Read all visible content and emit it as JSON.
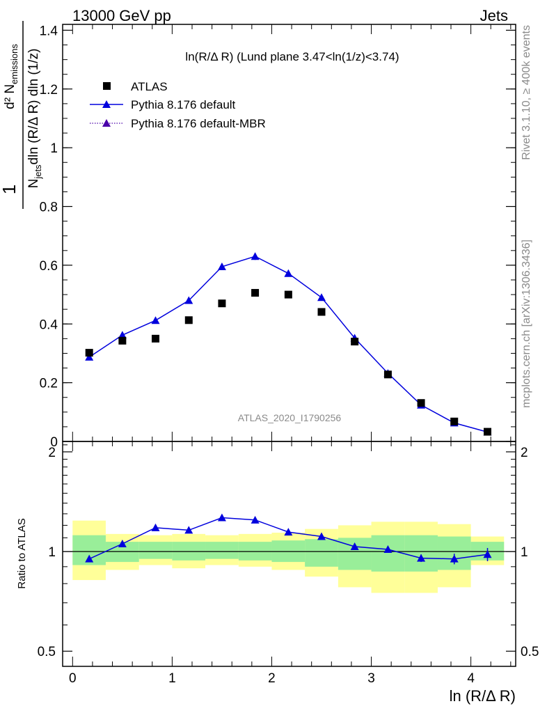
{
  "header": {
    "left": "13000 GeV pp",
    "right": "Jets"
  },
  "side_labels": {
    "rivet": "Rivet 3.1.10, ≥ 400k events",
    "mcplots": "mcplots.cern.ch [arXiv:1306.3436]"
  },
  "watermark": "ATLAS_2020_I1790256",
  "colors": {
    "data": "#000000",
    "mc": "#0000dd",
    "band_inner": "#99ee99",
    "band_outer": "#ffff99"
  },
  "chart_data": [
    {
      "type": "scatter",
      "title": "ln(R/Δ R) (Lund plane 3.47<ln(1/z)<3.74)",
      "ylabel": "1/N_jets d²N_emissions / dln(R/Δ R) dln(1/z)",
      "xlim": [
        -0.1,
        4.45
      ],
      "ylim": [
        0,
        1.42
      ],
      "yticks": [
        0,
        0.2,
        0.4,
        0.6,
        0.8,
        1.0,
        1.2,
        1.4
      ],
      "ytick_labels": [
        "0",
        "0.2",
        "0.4",
        "0.6",
        "0.8",
        "1",
        "1.2",
        "1.4"
      ],
      "legend": {
        "placement": "top-left",
        "entries": [
          "ATLAS",
          "Pythia 8.176 default",
          "Pythia 8.176 default-MBR"
        ]
      },
      "x": [
        0.167,
        0.5,
        0.833,
        1.167,
        1.5,
        1.833,
        2.167,
        2.5,
        2.833,
        3.167,
        3.5,
        3.833,
        4.167
      ],
      "series": [
        {
          "name": "ATLAS",
          "marker": "square",
          "values": [
            0.302,
            0.343,
            0.35,
            0.413,
            0.47,
            0.506,
            0.5,
            0.441,
            0.34,
            0.228,
            0.131,
            0.068,
            0.033
          ]
        },
        {
          "name": "Pythia 8.176 default",
          "marker": "triangle",
          "line": "solid",
          "values": [
            0.287,
            0.362,
            0.412,
            0.48,
            0.595,
            0.63,
            0.572,
            0.49,
            0.352,
            0.232,
            0.124,
            0.063,
            0.032
          ],
          "errors": [
            0.004,
            0.004,
            0.005,
            0.005,
            0.006,
            0.012,
            0.006,
            0.005,
            0.004,
            0.004,
            0.003,
            0.003,
            0.002
          ]
        }
      ]
    },
    {
      "type": "scatter",
      "ylabel": "Ratio to ATLAS",
      "xlabel": "ln (R/Δ R)",
      "xlim": [
        -0.1,
        4.45
      ],
      "ylim": [
        0.45,
        2.15
      ],
      "ylog": true,
      "xticks": [
        0,
        1,
        2,
        3,
        4
      ],
      "xtick_labels": [
        "0",
        "1",
        "2",
        "3",
        "4"
      ],
      "yticks": [
        0.5,
        1,
        2
      ],
      "ytick_labels": [
        "0.5",
        "1",
        "2"
      ],
      "bin_edges": [
        0,
        0.333,
        0.667,
        1.0,
        1.333,
        1.667,
        2.0,
        2.333,
        2.667,
        3.0,
        3.333,
        3.667,
        4.0,
        4.333
      ],
      "band_inner": [
        [
          0.91,
          1.12
        ],
        [
          0.93,
          1.07
        ],
        [
          0.95,
          1.07
        ],
        [
          0.94,
          1.07
        ],
        [
          0.95,
          1.07
        ],
        [
          0.94,
          1.07
        ],
        [
          0.93,
          1.08
        ],
        [
          0.9,
          1.09
        ],
        [
          0.88,
          1.1
        ],
        [
          0.87,
          1.12
        ],
        [
          0.87,
          1.12
        ],
        [
          0.88,
          1.11
        ],
        [
          0.94,
          1.07
        ]
      ],
      "band_outer": [
        [
          0.82,
          1.24
        ],
        [
          0.88,
          1.13
        ],
        [
          0.91,
          1.12
        ],
        [
          0.89,
          1.13
        ],
        [
          0.91,
          1.12
        ],
        [
          0.9,
          1.13
        ],
        [
          0.88,
          1.14
        ],
        [
          0.84,
          1.17
        ],
        [
          0.78,
          1.2
        ],
        [
          0.75,
          1.23
        ],
        [
          0.75,
          1.23
        ],
        [
          0.78,
          1.21
        ],
        [
          0.91,
          1.11
        ]
      ],
      "series": [
        {
          "name": "Pythia 8.176 default",
          "values": [
            0.95,
            1.055,
            1.18,
            1.16,
            1.265,
            1.245,
            1.145,
            1.11,
            1.035,
            1.015,
            0.955,
            0.95,
            0.98
          ],
          "errors": [
            0.01,
            0.01,
            0.012,
            0.012,
            0.012,
            0.015,
            0.012,
            0.012,
            0.013,
            0.018,
            0.025,
            0.035,
            0.045
          ]
        }
      ]
    }
  ]
}
